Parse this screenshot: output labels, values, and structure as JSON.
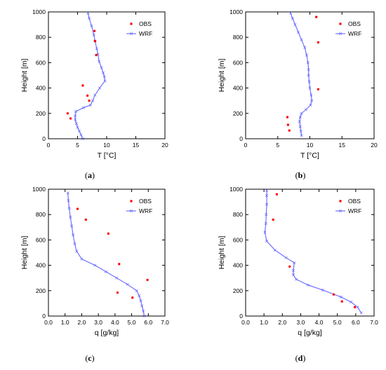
{
  "chart_data": [
    {
      "type": "line",
      "panel_label": "(",
      "panel_letter": "a",
      "panel_close": ")",
      "xlabel": "T [°C]",
      "ylabel": "Height [m]",
      "xlim": [
        0,
        20
      ],
      "ylim": [
        0,
        1000
      ],
      "xticks": [
        "0",
        "5",
        "10",
        "15",
        "20"
      ],
      "yticks": [
        "0",
        "200",
        "400",
        "600",
        "800",
        "1000"
      ],
      "legend": [
        "OBS",
        "WRF"
      ],
      "legend_position": "top-right",
      "colors": {
        "obs": "#ff0000",
        "wrf": "#6666ff"
      },
      "series": [
        {
          "name": "OBS",
          "style": "markers",
          "points": [
            [
              7.9,
              850
            ],
            [
              8.0,
              770
            ],
            [
              8.2,
              660
            ],
            [
              5.9,
              420
            ],
            [
              6.7,
              340
            ],
            [
              7.0,
              300
            ],
            [
              3.3,
              200
            ],
            [
              3.8,
              160
            ]
          ]
        },
        {
          "name": "WRF",
          "style": "line-markers",
          "points": [
            [
              5.9,
              0
            ],
            [
              5.6,
              30
            ],
            [
              5.3,
              60
            ],
            [
              5.0,
              90
            ],
            [
              4.8,
              120
            ],
            [
              4.6,
              150
            ],
            [
              4.6,
              180
            ],
            [
              4.7,
              215
            ],
            [
              6.0,
              245
            ],
            [
              7.2,
              265
            ],
            [
              7.6,
              300
            ],
            [
              8.0,
              345
            ],
            [
              8.8,
              400
            ],
            [
              9.7,
              455
            ],
            [
              9.6,
              490
            ],
            [
              9.4,
              520
            ],
            [
              9.1,
              560
            ],
            [
              8.7,
              610
            ],
            [
              8.5,
              665
            ],
            [
              8.3,
              710
            ],
            [
              8.0,
              770
            ],
            [
              7.8,
              820
            ],
            [
              7.4,
              890
            ],
            [
              7.0,
              950
            ],
            [
              6.8,
              990
            ]
          ]
        }
      ]
    },
    {
      "type": "line",
      "panel_label": "(",
      "panel_letter": "b",
      "panel_close": ")",
      "xlabel": "T [°C]",
      "ylabel": "Height [m]",
      "xlim": [
        0,
        20
      ],
      "ylim": [
        0,
        1000
      ],
      "xticks": [
        "0",
        "5",
        "10",
        "15",
        "20"
      ],
      "yticks": [
        "0",
        "200",
        "400",
        "600",
        "800",
        "1000"
      ],
      "legend": [
        "OBS",
        "WRF"
      ],
      "legend_position": "top-right",
      "colors": {
        "obs": "#ff0000",
        "wrf": "#6666ff"
      },
      "series": [
        {
          "name": "OBS",
          "style": "markers",
          "points": [
            [
              11.0,
              960
            ],
            [
              11.3,
              760
            ],
            [
              11.3,
              390
            ],
            [
              6.5,
              170
            ],
            [
              6.6,
              110
            ],
            [
              6.8,
              65
            ]
          ]
        },
        {
          "name": "WRF",
          "style": "line-markers",
          "points": [
            [
              8.7,
              25
            ],
            [
              8.6,
              60
            ],
            [
              8.5,
              95
            ],
            [
              8.4,
              135
            ],
            [
              8.5,
              170
            ],
            [
              8.7,
              200
            ],
            [
              9.4,
              230
            ],
            [
              10.1,
              265
            ],
            [
              10.3,
              300
            ],
            [
              10.2,
              345
            ],
            [
              10.0,
              400
            ],
            [
              9.9,
              450
            ],
            [
              9.8,
              500
            ],
            [
              9.8,
              545
            ],
            [
              9.7,
              600
            ],
            [
              9.5,
              660
            ],
            [
              9.2,
              720
            ],
            [
              8.7,
              780
            ],
            [
              8.2,
              840
            ],
            [
              7.7,
              900
            ],
            [
              7.3,
              950
            ],
            [
              7.0,
              990
            ]
          ]
        }
      ]
    },
    {
      "type": "line",
      "panel_label": "(",
      "panel_letter": "c",
      "panel_close": ")",
      "xlabel": "q [g/kg]",
      "ylabel": "Height [m]",
      "xlim": [
        0,
        7
      ],
      "ylim": [
        0,
        1000
      ],
      "xticks": [
        "0.0",
        "1.0",
        "2.0",
        "3.0",
        "4.0",
        "5.0",
        "6.0",
        "7.0"
      ],
      "yticks": [
        "0",
        "200",
        "400",
        "600",
        "800",
        "1000"
      ],
      "legend": [
        "OBS",
        "WRF"
      ],
      "legend_position": "top-right",
      "colors": {
        "obs": "#ff0000",
        "wrf": "#6666ff"
      },
      "series": [
        {
          "name": "OBS",
          "style": "markers",
          "points": [
            [
              1.75,
              845
            ],
            [
              2.25,
              760
            ],
            [
              3.6,
              650
            ],
            [
              4.25,
              410
            ],
            [
              5.95,
              285
            ],
            [
              4.15,
              185
            ],
            [
              5.05,
              145
            ]
          ]
        },
        {
          "name": "WRF",
          "style": "line-markers",
          "points": [
            [
              5.75,
              0
            ],
            [
              5.7,
              40
            ],
            [
              5.62,
              80
            ],
            [
              5.55,
              120
            ],
            [
              5.45,
              160
            ],
            [
              5.3,
              200
            ],
            [
              4.75,
              250
            ],
            [
              4.1,
              300
            ],
            [
              3.45,
              350
            ],
            [
              2.8,
              400
            ],
            [
              2.0,
              450
            ],
            [
              1.7,
              510
            ],
            [
              1.58,
              570
            ],
            [
              1.48,
              640
            ],
            [
              1.4,
              710
            ],
            [
              1.32,
              780
            ],
            [
              1.25,
              850
            ],
            [
              1.2,
              910
            ],
            [
              1.17,
              970
            ]
          ]
        }
      ]
    },
    {
      "type": "line",
      "panel_label": "(",
      "panel_letter": "d",
      "panel_close": ")",
      "xlabel": "q [g/kg]",
      "ylabel": "Height [m]",
      "xlim": [
        0,
        7
      ],
      "ylim": [
        0,
        1000
      ],
      "xticks": [
        "0.0",
        "1.0",
        "2.0",
        "3.0",
        "4.0",
        "5.0",
        "6.0",
        "7.0"
      ],
      "yticks": [
        "0",
        "200",
        "400",
        "600",
        "800",
        "1000"
      ],
      "legend": [
        "OBS",
        "WRF"
      ],
      "legend_position": "top-right",
      "colors": {
        "obs": "#ff0000",
        "wrf": "#6666ff"
      },
      "series": [
        {
          "name": "OBS",
          "style": "markers",
          "points": [
            [
              1.7,
              960
            ],
            [
              1.5,
              760
            ],
            [
              2.4,
              390
            ],
            [
              4.8,
              170
            ],
            [
              5.25,
              115
            ],
            [
              5.95,
              70
            ]
          ]
        },
        {
          "name": "WRF",
          "style": "line-markers",
          "points": [
            [
              6.3,
              25
            ],
            [
              6.1,
              70
            ],
            [
              5.75,
              110
            ],
            [
              5.2,
              150
            ],
            [
              4.2,
              205
            ],
            [
              3.4,
              245
            ],
            [
              2.75,
              290
            ],
            [
              2.6,
              325
            ],
            [
              2.6,
              360
            ],
            [
              2.65,
              420
            ],
            [
              2.2,
              460
            ],
            [
              1.6,
              520
            ],
            [
              1.15,
              590
            ],
            [
              1.05,
              660
            ],
            [
              1.1,
              730
            ],
            [
              1.12,
              800
            ],
            [
              1.15,
              880
            ],
            [
              1.15,
              950
            ],
            [
              1.15,
              990
            ]
          ]
        }
      ]
    }
  ]
}
